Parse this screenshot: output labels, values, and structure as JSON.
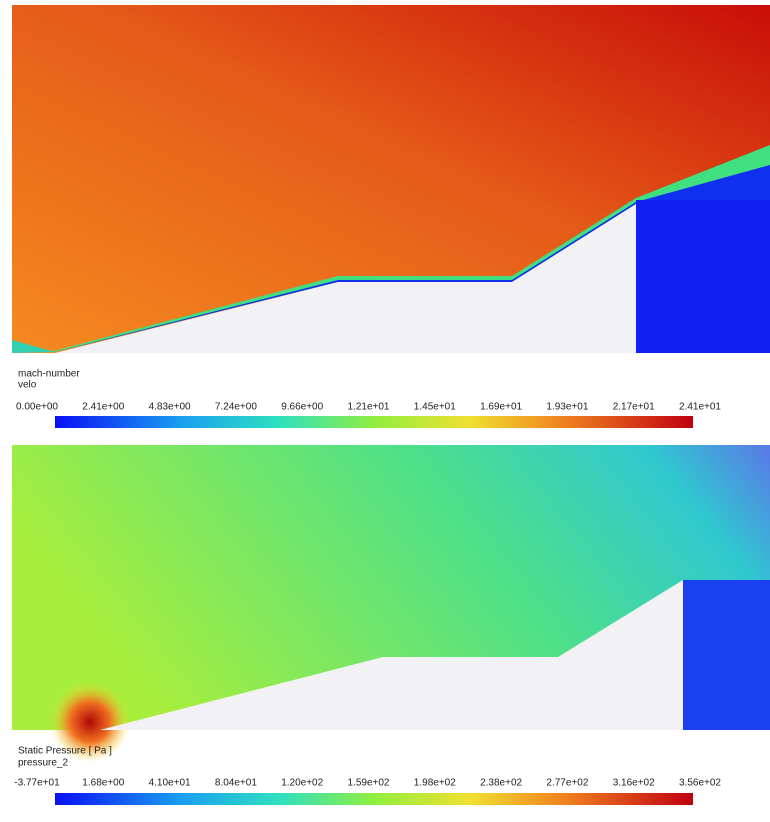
{
  "panels": [
    {
      "legend": {
        "title": "mach-number",
        "subtitle": "velo",
        "ticks": [
          "0.00e+00",
          "2.41e+00",
          "4.83e+00",
          "7.24e+00",
          "9.66e+00",
          "1.21e+01",
          "1.45e+01",
          "1.69e+01",
          "1.93e+01",
          "2.17e+01",
          "2.41e+01"
        ]
      }
    },
    {
      "legend": {
        "title": "Static Pressure [ Pa ]",
        "subtitle": "pressure_2",
        "ticks": [
          "-3.77e+01",
          "1.68e+00",
          "4.10e+01",
          "8.04e+01",
          "1.20e+02",
          "1.59e+02",
          "1.98e+02",
          "2.38e+02",
          "2.77e+02",
          "3.16e+02",
          "3.56e+02"
        ]
      }
    }
  ]
}
